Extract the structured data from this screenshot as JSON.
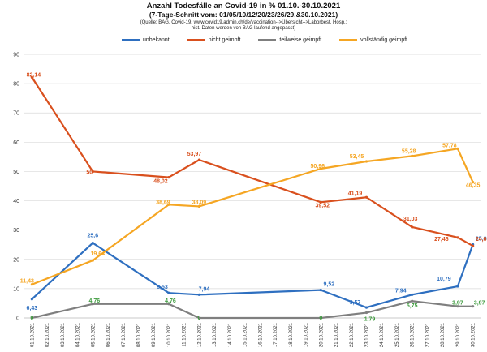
{
  "header": {
    "title": "Anzahl  Todesfälle an Covid-19  in % 01.10.-30.10.2021",
    "subtitle": "(7-Tage-Schnitt vom:  01/05/10/12/20/23/26/29.&30.10.2021)",
    "source_line1": "(Quelle: BAG, Covid-19, www.covid19.admin.ch/de/vaccination-->Übersicht-->Laborbest. Hosp.;",
    "source_line2": "hist. Daten werden  von BAG laufend angepasst)"
  },
  "colors": {
    "unbekannt": "#2e6fc0",
    "nicht_geimpft": "#d9501e",
    "teilweise_geimpft": "#7f7f7f",
    "vollstaendig_geimpft": "#f5a623",
    "grid": "#d9d9d9",
    "teilweise_label": "#3c9a3c"
  },
  "chart_data": {
    "type": "line",
    "title": "Anzahl  Todesfälle an Covid-19  in % 01.10.-30.10.2021",
    "ylim": [
      0,
      90
    ],
    "yticks": [
      0,
      10,
      20,
      30,
      40,
      50,
      60,
      70,
      80,
      90
    ],
    "grid": true,
    "legend_position": "top",
    "categories": [
      "01.10.2021",
      "02.10.2021",
      "03.10.2021",
      "04.10.2021",
      "05.10.2021",
      "06.10.2021",
      "07.10.2021",
      "08.10.2021",
      "09.10.2021",
      "10.10.2021",
      "11.10.2021",
      "12.10.2021",
      "13.10.2021",
      "14.10.2021",
      "15.10.2021",
      "16.10.2021",
      "17.10.2021",
      "18.10.2021",
      "19.10.2021",
      "20.10.2021",
      "21.10.2021",
      "22.10.2021",
      "23.10.2021",
      "24.10.2021",
      "25.10.2021",
      "26.10.2021",
      "27.10.2021",
      "28.10.2021",
      "29.10.2021",
      "30.10.2021"
    ],
    "series": [
      {
        "name": "unbekannt",
        "color_key": "unbekannt",
        "points": [
          {
            "x": "01.10.2021",
            "y": 6.43,
            "label": "6,43"
          },
          {
            "x": "05.10.2021",
            "y": 25.6,
            "label": "25,6"
          },
          {
            "x": "10.10.2021",
            "y": 8.53,
            "label": "8,53"
          },
          {
            "x": "12.10.2021",
            "y": 7.94,
            "label": "7,94"
          },
          {
            "x": "20.10.2021",
            "y": 9.52,
            "label": "9,52"
          },
          {
            "x": "23.10.2021",
            "y": 3.57,
            "label": "3,57"
          },
          {
            "x": "26.10.2021",
            "y": 7.94,
            "label": "7,94"
          },
          {
            "x": "29.10.2021",
            "y": 10.79,
            "label": "10,79"
          },
          {
            "x": "30.10.2021",
            "y": 25.08,
            "label": "25,08"
          }
        ]
      },
      {
        "name": "nicht geimpft",
        "color_key": "nicht_geimpft",
        "points": [
          {
            "x": "01.10.2021",
            "y": 82.14,
            "label": "82,14"
          },
          {
            "x": "05.10.2021",
            "y": 50,
            "label": "50"
          },
          {
            "x": "10.10.2021",
            "y": 48.02,
            "label": "48,02"
          },
          {
            "x": "12.10.2021",
            "y": 53.97,
            "label": "53,97"
          },
          {
            "x": "20.10.2021",
            "y": 39.52,
            "label": "39,52"
          },
          {
            "x": "23.10.2021",
            "y": 41.19,
            "label": "41,19"
          },
          {
            "x": "26.10.2021",
            "y": 31.03,
            "label": "31,03"
          },
          {
            "x": "29.10.2021",
            "y": 27.46,
            "label": "27,46"
          },
          {
            "x": "30.10.2021",
            "y": 24.6,
            "label": "24,6"
          }
        ]
      },
      {
        "name": "teilweise geimpft",
        "color_key": "teilweise_geimpft",
        "label_color_key": "teilweise_label",
        "points": [
          {
            "x": "01.10.2021",
            "y": 0,
            "label": "0"
          },
          {
            "x": "05.10.2021",
            "y": 4.76,
            "label": "4,76"
          },
          {
            "x": "10.10.2021",
            "y": 4.76,
            "label": "4,76"
          },
          {
            "x": "12.10.2021",
            "y": 0,
            "label": "0"
          },
          {
            "x": "20.10.2021",
            "y": 0,
            "label": "0"
          },
          {
            "x": "23.10.2021",
            "y": 1.79,
            "label": "1,79"
          },
          {
            "x": "26.10.2021",
            "y": 5.75,
            "label": "5,75"
          },
          {
            "x": "29.10.2021",
            "y": 3.97,
            "label": "3,97"
          },
          {
            "x": "30.10.2021",
            "y": 3.97,
            "label": "3,97"
          }
        ]
      },
      {
        "name": "vollständig geimpft",
        "color_key": "vollstaendig_geimpft",
        "points": [
          {
            "x": "01.10.2021",
            "y": 11.43,
            "label": "11,43"
          },
          {
            "x": "05.10.2021",
            "y": 19.64,
            "label": "19,64"
          },
          {
            "x": "10.10.2021",
            "y": 38.69,
            "label": "38,69"
          },
          {
            "x": "12.10.2021",
            "y": 38.09,
            "label": "38,09"
          },
          {
            "x": "20.10.2021",
            "y": 50.96,
            "label": "50,96"
          },
          {
            "x": "23.10.2021",
            "y": 53.45,
            "label": "53,45"
          },
          {
            "x": "26.10.2021",
            "y": 55.28,
            "label": "55,28"
          },
          {
            "x": "29.10.2021",
            "y": 57.78,
            "label": "57,78"
          },
          {
            "x": "30.10.2021",
            "y": 46.35,
            "label": "46,35"
          }
        ]
      }
    ]
  }
}
